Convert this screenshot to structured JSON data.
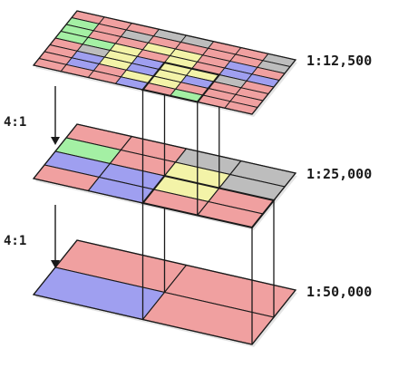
{
  "levels": [
    {
      "scale": "1:12,500",
      "rows": 8,
      "cols": 8,
      "cells": [
        [
          "red",
          "red",
          "red",
          "gray",
          "gray",
          "red",
          "red",
          "gray"
        ],
        [
          "green",
          "red",
          "gray",
          "red",
          "red",
          "red",
          "red",
          "gray"
        ],
        [
          "green",
          "red",
          "red",
          "yellow",
          "yellow",
          "red",
          "blue",
          "red"
        ],
        [
          "green",
          "green",
          "yellow",
          "red",
          "yellow",
          "red",
          "blue",
          "blue"
        ],
        [
          "red",
          "gray",
          "yellow",
          "blue",
          "yellow",
          "yellow",
          "gray",
          "red"
        ],
        [
          "red",
          "blue",
          "yellow",
          "blue",
          "yellow",
          "blue",
          "red",
          "red"
        ],
        [
          "red",
          "blue",
          "red",
          "yellow",
          "yellow",
          "red",
          "red",
          "red"
        ],
        [
          "red",
          "red",
          "red",
          "blue",
          "red",
          "green",
          "red",
          "red"
        ]
      ]
    },
    {
      "scale": "1:25,000",
      "rows": 4,
      "cols": 4,
      "cells": [
        [
          "red",
          "red",
          "gray",
          "gray"
        ],
        [
          "green",
          "red",
          "yellow",
          "gray"
        ],
        [
          "blue",
          "blue",
          "yellow",
          "red"
        ],
        [
          "red",
          "blue",
          "red",
          "red"
        ]
      ]
    },
    {
      "scale": "1:50,000",
      "rows": 2,
      "cols": 2,
      "cells": [
        [
          "red",
          "red"
        ],
        [
          "blue",
          "red"
        ]
      ]
    }
  ],
  "ratios": [
    "4:1",
    "4:1"
  ],
  "colors": {
    "red": "#f0a0a0",
    "blue": "#9f9ff0",
    "green": "#a4f0a4",
    "yellow": "#f3f3a8",
    "gray": "#bdbdbd",
    "outline": "#1a1a1a"
  }
}
